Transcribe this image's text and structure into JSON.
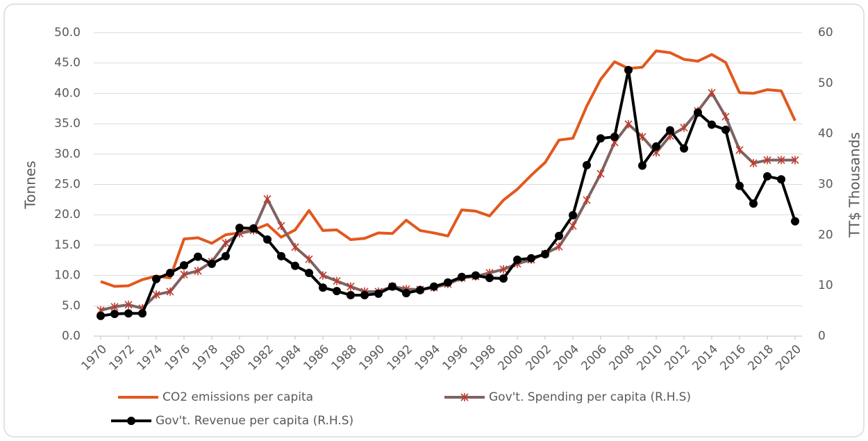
{
  "chart_data": {
    "type": "line",
    "x": [
      1970,
      1971,
      1972,
      1973,
      1974,
      1975,
      1976,
      1977,
      1978,
      1979,
      1980,
      1981,
      1982,
      1983,
      1984,
      1985,
      1986,
      1987,
      1988,
      1989,
      1990,
      1991,
      1992,
      1993,
      1994,
      1995,
      1996,
      1997,
      1998,
      1999,
      2000,
      2001,
      2002,
      2003,
      2004,
      2005,
      2006,
      2007,
      2008,
      2009,
      2010,
      2011,
      2012,
      2013,
      2014,
      2015,
      2016,
      2017,
      2018,
      2019,
      2020
    ],
    "xlim": [
      1969.5,
      2020.5
    ],
    "xticks": [
      1970,
      1972,
      1974,
      1976,
      1978,
      1980,
      1982,
      1984,
      1986,
      1988,
      1990,
      1992,
      1994,
      1996,
      1998,
      2000,
      2002,
      2004,
      2006,
      2008,
      2010,
      2012,
      2014,
      2016,
      2018,
      2020
    ],
    "ylabel": "Tonnes",
    "y2label": "TT$ Thousands",
    "ylim": [
      0,
      50
    ],
    "yticks": [
      {
        "value": 0,
        "label": "0.0"
      },
      {
        "value": 5,
        "label": "5.0"
      },
      {
        "value": 10,
        "label": "10.0"
      },
      {
        "value": 15,
        "label": "15.0"
      },
      {
        "value": 20,
        "label": "20.0"
      },
      {
        "value": 25,
        "label": "25.0"
      },
      {
        "value": 30,
        "label": "30.0"
      },
      {
        "value": 35,
        "label": "35.0"
      },
      {
        "value": 40,
        "label": "40.0"
      },
      {
        "value": 45,
        "label": "45.0"
      },
      {
        "value": 50,
        "label": "50.0"
      }
    ],
    "y2lim": [
      0,
      60
    ],
    "y2ticks": [
      0,
      10,
      20,
      30,
      40,
      50,
      60
    ],
    "grid": true,
    "legend": "bottom",
    "series": [
      {
        "name": "CO2 emissions per capita",
        "color": "#e2581e",
        "marker": "none",
        "values": [
          9.0,
          8.2,
          8.3,
          9.3,
          9.9,
          9.6,
          16.0,
          16.2,
          15.3,
          16.7,
          17.0,
          17.5,
          18.4,
          16.3,
          17.5,
          20.7,
          17.4,
          17.5,
          15.9,
          16.1,
          17.0,
          16.9,
          19.1,
          17.4,
          17.0,
          16.5,
          20.8,
          20.6,
          19.8,
          22.4,
          24.2,
          26.5,
          28.6,
          32.3,
          32.6,
          37.9,
          42.3,
          45.2,
          44.1,
          44.3,
          47.0,
          46.7,
          45.6,
          45.3,
          46.4,
          45.1,
          40.1,
          40.0,
          40.6,
          40.4,
          35.5
        ]
      },
      {
        "name": "Gov't. Spending per capita (R.H.S)",
        "color": "#7f6262",
        "marker": "x",
        "marker_color": "#c0392b",
        "axis": "y2",
        "values": [
          5.1,
          5.8,
          6.2,
          5.5,
          8.2,
          8.8,
          12.2,
          12.9,
          14.7,
          18.4,
          20.3,
          20.9,
          27.1,
          21.8,
          17.6,
          15.2,
          12.0,
          10.9,
          9.8,
          8.8,
          8.8,
          9.8,
          9.3,
          9.2,
          9.6,
          10.3,
          11.5,
          11.8,
          12.5,
          13.2,
          14.3,
          15.1,
          16.3,
          17.7,
          21.8,
          26.9,
          32.1,
          38.3,
          41.9,
          39.4,
          36.3,
          39.6,
          41.2,
          44.5,
          48.1,
          43.4,
          36.8,
          34.2,
          34.8,
          34.8,
          34.8
        ]
      },
      {
        "name": "Gov't. Revenue per capita (R.H.S)",
        "color": "#000000",
        "marker": "circle",
        "marker_color": "#000000",
        "axis": "y2",
        "values": [
          4.0,
          4.4,
          4.5,
          4.5,
          11.3,
          12.5,
          14.0,
          15.7,
          14.3,
          15.8,
          21.4,
          21.3,
          19.1,
          15.8,
          13.9,
          12.5,
          9.6,
          8.9,
          8.1,
          8.1,
          8.4,
          9.8,
          8.5,
          9.1,
          9.8,
          10.6,
          11.7,
          12.0,
          11.5,
          11.4,
          15.1,
          15.4,
          16.2,
          19.8,
          23.9,
          33.8,
          39.1,
          39.4,
          52.6,
          33.7,
          37.5,
          40.7,
          37.1,
          44.2,
          41.8,
          40.8,
          29.7,
          26.2,
          31.6,
          31.0,
          22.7
        ]
      }
    ]
  }
}
